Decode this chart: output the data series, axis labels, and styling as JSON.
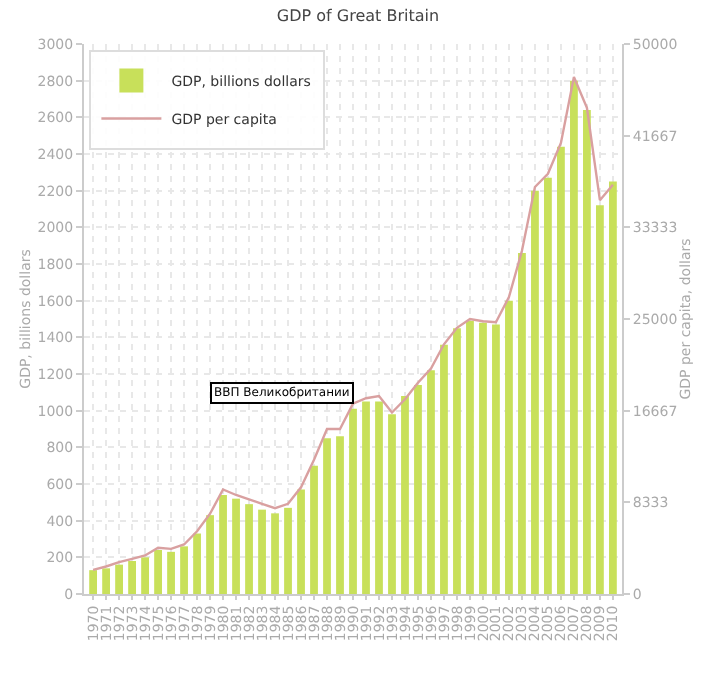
{
  "chart_data": {
    "type": "bar",
    "title": "GDP of Great Britain",
    "ylabel": "GDP, billions dollars",
    "y2label": "GDP per capita, dollars",
    "categories": [
      "1970",
      "1971",
      "1972",
      "1973",
      "1974",
      "1975",
      "1976",
      "1977",
      "1978",
      "1979",
      "1980",
      "1981",
      "1982",
      "1983",
      "1984",
      "1985",
      "1986",
      "1987",
      "1988",
      "1989",
      "1990",
      "1991",
      "1992",
      "1993",
      "1994",
      "1995",
      "1996",
      "1997",
      "1998",
      "1999",
      "2000",
      "2001",
      "2002",
      "2003",
      "2004",
      "2005",
      "2006",
      "2007",
      "2008",
      "2009",
      "2010"
    ],
    "series": [
      {
        "name": "GDP, billions dollars",
        "color": "#c8e05a",
        "values": [
          130,
          140,
          160,
          180,
          200,
          240,
          230,
          260,
          330,
          430,
          540,
          520,
          490,
          460,
          440,
          470,
          570,
          700,
          850,
          860,
          1010,
          1050,
          1050,
          980,
          1080,
          1140,
          1220,
          1360,
          1450,
          1490,
          1480,
          1470,
          1600,
          1860,
          2200,
          2270,
          2440,
          2800,
          2640,
          2120,
          2250
        ]
      },
      {
        "name": "GDP per capita",
        "type": "line",
        "axis": "y2",
        "color": "#d9a0a0",
        "values": [
          2200,
          2500,
          2900,
          3200,
          3500,
          4200,
          4100,
          4500,
          5700,
          7300,
          9500,
          9000,
          8600,
          8200,
          7800,
          8200,
          9700,
          12200,
          15000,
          15000,
          17300,
          17800,
          18000,
          16500,
          17700,
          19200,
          20500,
          22700,
          24200,
          25000,
          24800,
          24700,
          27000,
          31200,
          37000,
          38200,
          41000,
          47000,
          44200,
          35800,
          37200
        ]
      }
    ],
    "ylim": [
      0,
      3000
    ],
    "yticks": [
      0,
      200,
      400,
      600,
      800,
      1000,
      1200,
      1400,
      1600,
      1800,
      2000,
      2200,
      2400,
      2600,
      2800,
      3000
    ],
    "y2lim": [
      0,
      50000
    ],
    "y2ticks": [
      0,
      8333,
      16667,
      25000,
      33333,
      41667,
      50000
    ],
    "annotations": [
      {
        "text": "ВВП Великобритании",
        "x": "1990",
        "y": 1040
      }
    ],
    "grid": true,
    "legend": "top left",
    "marker": "none",
    "line_style": "solid"
  }
}
